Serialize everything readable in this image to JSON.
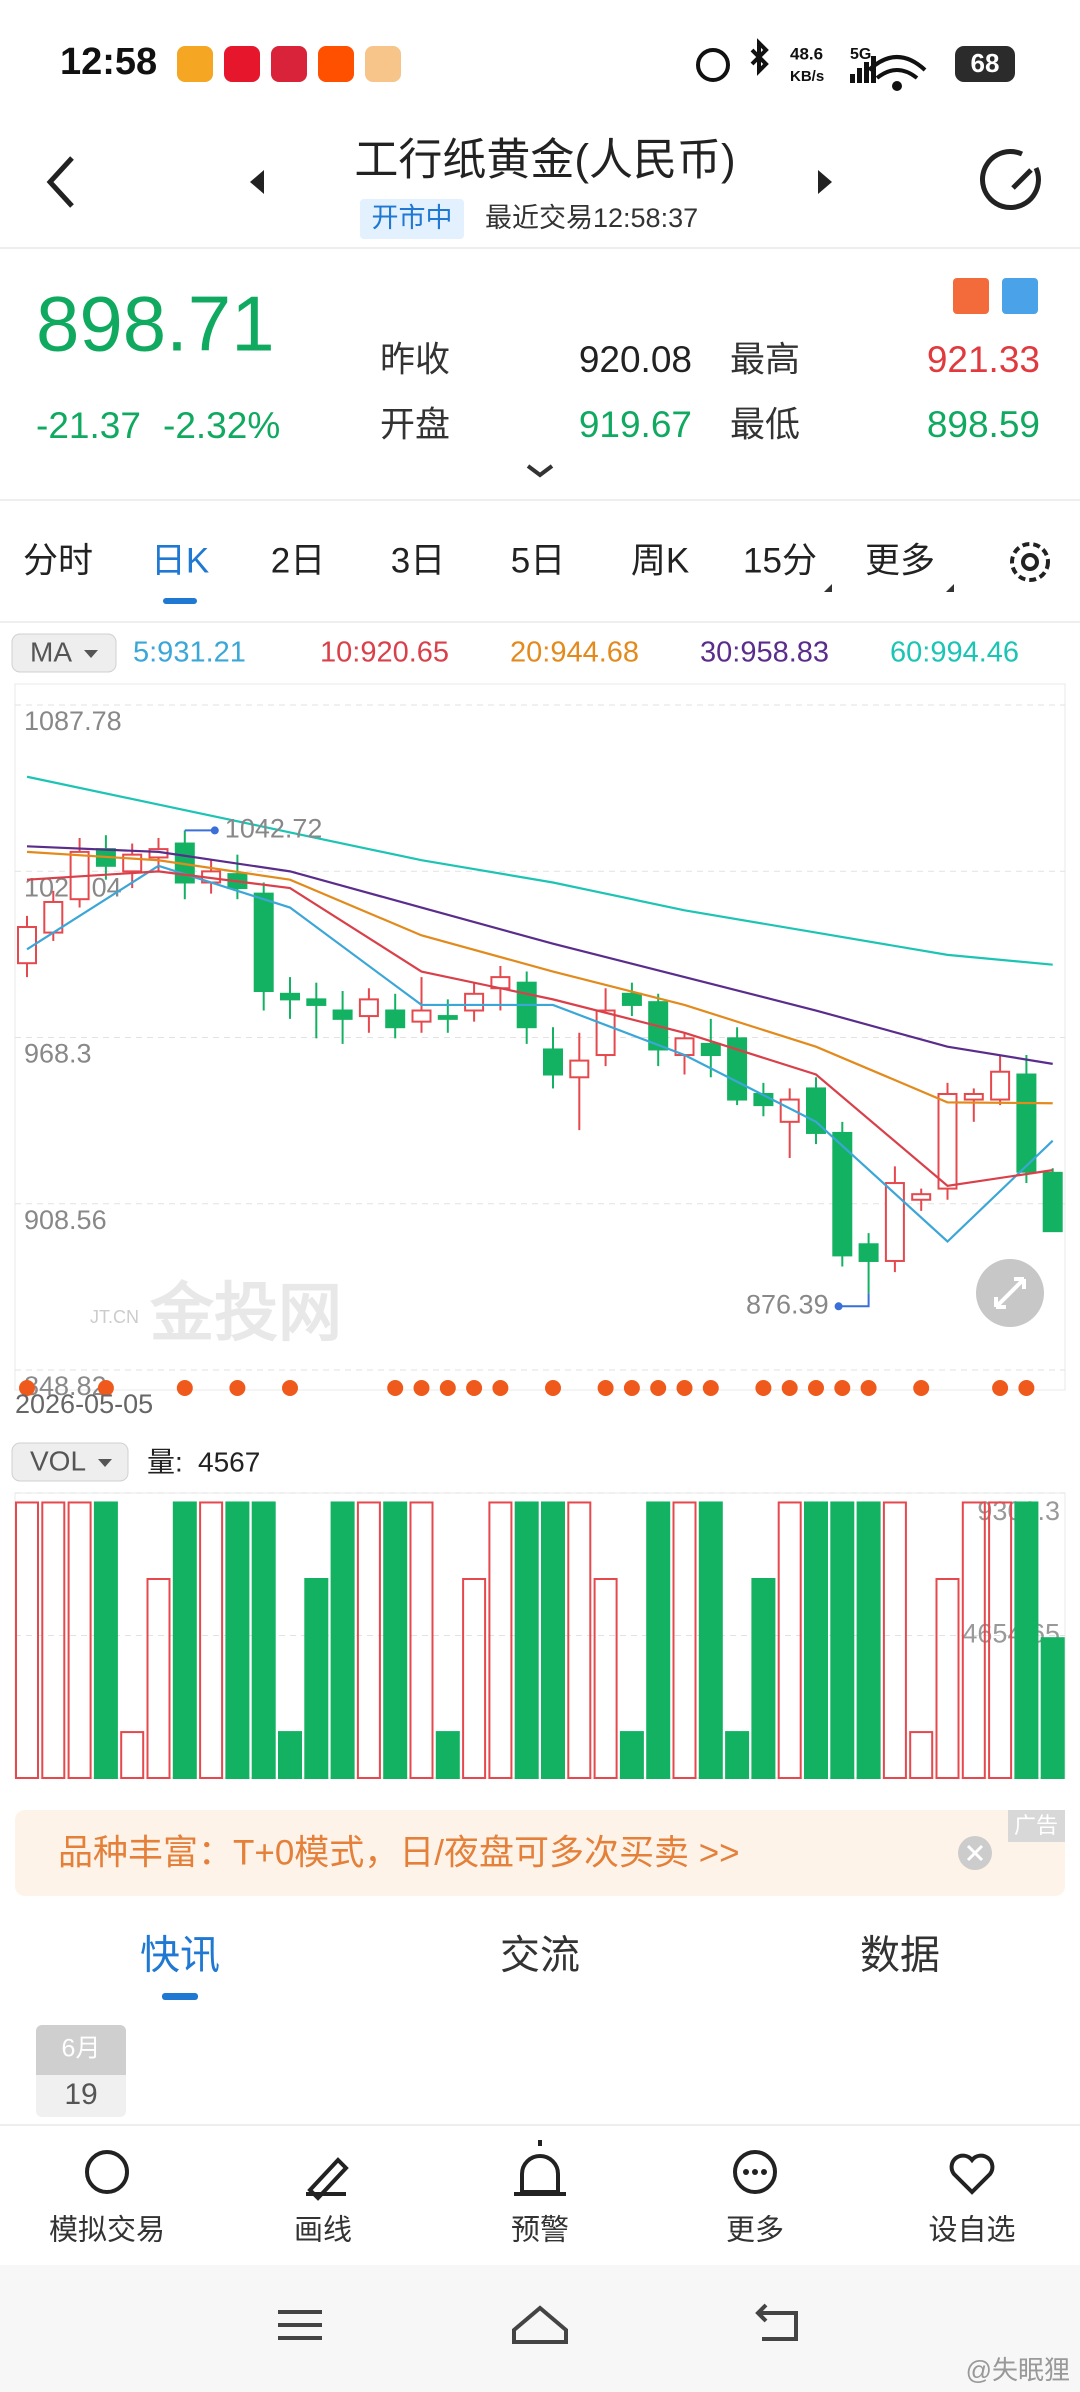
{
  "status_bar": {
    "time": "12:58",
    "net_speed": "48.6",
    "net_unit": "KB/s",
    "network": "5G",
    "battery": "68"
  },
  "header": {
    "title": "工行纸黄金(人民币)",
    "status": "开市中",
    "last_trade": "最近交易12:58:37"
  },
  "quote": {
    "price": 898.71,
    "change": -21.37,
    "change_pct": "-2.32%",
    "fields": [
      {
        "label": "昨收",
        "value": 920.08
      },
      {
        "label": "最高",
        "value": 921.33
      },
      {
        "label": "开盘",
        "value": 919.67
      },
      {
        "label": "最低",
        "value": 898.59
      }
    ]
  },
  "period_tabs": [
    "分时",
    "日K",
    "2日",
    "3日",
    "5日",
    "周K",
    "15分",
    "更多"
  ],
  "chart_data": {
    "type": "candlestick",
    "indicator": "MA",
    "start_date": "2026-05-05",
    "watermark": "金投网",
    "watermark_sub": "JT.CN",
    "ylim": [
      848.82,
      1087.78
    ],
    "yticks": [
      1087.78,
      1028.04,
      968.3,
      908.56,
      848.82
    ],
    "grid": true,
    "up_color": "#e5484d",
    "down_color": "#13b262",
    "candles": {
      "open": [
        995,
        1006,
        1018,
        1036,
        1028,
        1033,
        1038,
        1024,
        1027,
        1020,
        984,
        982,
        978,
        976,
        978,
        974,
        976,
        978,
        986,
        988,
        964,
        954,
        962,
        984,
        981,
        962,
        966,
        968,
        948,
        938,
        950,
        934,
        894,
        888,
        910,
        914,
        946,
        946,
        955,
        919.67
      ],
      "high": [
        1012,
        1021,
        1040,
        1041,
        1038,
        1040,
        1042.72,
        1032,
        1034,
        1024,
        990,
        988,
        985,
        986,
        984,
        990,
        982,
        988,
        994,
        992,
        972,
        970,
        986,
        988,
        984,
        970,
        975,
        972,
        952,
        950,
        954,
        938,
        898,
        922,
        914,
        952,
        950,
        962,
        962,
        921.33
      ],
      "low": [
        990,
        1003,
        1015,
        1025,
        1022,
        1028,
        1018,
        1020,
        1018,
        978,
        975,
        968,
        966,
        970,
        968,
        970,
        970,
        974,
        978,
        966,
        950,
        935,
        958,
        976,
        958,
        955,
        954,
        944,
        940,
        925,
        930,
        886,
        876.39,
        884,
        906,
        910,
        938,
        944,
        916,
        898.59
      ],
      "close": [
        1008,
        1017,
        1035,
        1030,
        1034,
        1036,
        1024,
        1028,
        1022,
        985,
        982,
        980,
        975,
        982,
        972,
        978,
        975,
        984,
        990,
        972,
        955,
        960,
        978,
        980,
        964,
        968,
        962,
        946,
        944,
        946,
        934,
        890,
        888,
        916,
        912,
        948,
        948,
        956,
        920.08,
        898.71
      ]
    },
    "ma_x": [
      0,
      5,
      10,
      15,
      20,
      25,
      30,
      35,
      39
    ],
    "ma": [
      {
        "label": "5:931.21",
        "color": "#3ba6d8",
        "values": [
          1000,
          1030,
          1015,
          980,
          980,
          962,
          938,
          895,
          931.21
        ]
      },
      {
        "label": "10:920.65",
        "color": "#d9404a",
        "values": [
          1025,
          1028,
          1022,
          992,
          982,
          970,
          955,
          915,
          920.65
        ]
      },
      {
        "label": "20:944.68",
        "color": "#e38a1c",
        "values": [
          1035,
          1032,
          1025,
          1005,
          992,
          980,
          965,
          945,
          944.68
        ]
      },
      {
        "label": "30:958.83",
        "color": "#5a2d8c",
        "values": [
          1037,
          1035,
          1028,
          1015,
          1002,
          990,
          978,
          965,
          958.83
        ]
      },
      {
        "label": "60:994.46",
        "color": "#1cc4b4",
        "values": [
          1062,
          1052,
          1042,
          1032,
          1024,
          1014,
          1006,
          998,
          994.46
        ]
      }
    ]
  },
  "volume": {
    "type": "bar",
    "label": "VOL",
    "current_prefix": "量:",
    "ylim": [
      0,
      9309.3
    ],
    "yticks": [
      0,
      4654.65,
      9309.3
    ],
    "values": [
      9000,
      9000,
      9000,
      9000,
      1500,
      6500,
      9000,
      9000,
      9000,
      9000,
      1500,
      6500,
      9000,
      9000,
      9000,
      9000,
      1500,
      6500,
      9000,
      9000,
      9000,
      9000,
      6500,
      1500,
      9000,
      9000,
      9000,
      1500,
      6500,
      9000,
      9000,
      9000,
      9000,
      9000,
      1500,
      6500,
      9000,
      9000,
      9000,
      4567
    ]
  },
  "ad": {
    "text": "品种丰富：T+0模式，日/夜盘可多次买卖 >>",
    "tag": "广告"
  },
  "content_tabs": [
    "快讯",
    "交流",
    "数据"
  ],
  "date_card": {
    "month": "6月",
    "day": "19"
  },
  "toolbar": [
    "模拟交易",
    "画线",
    "预警",
    "更多",
    "设自选"
  ],
  "watermark": "@失眠狸"
}
